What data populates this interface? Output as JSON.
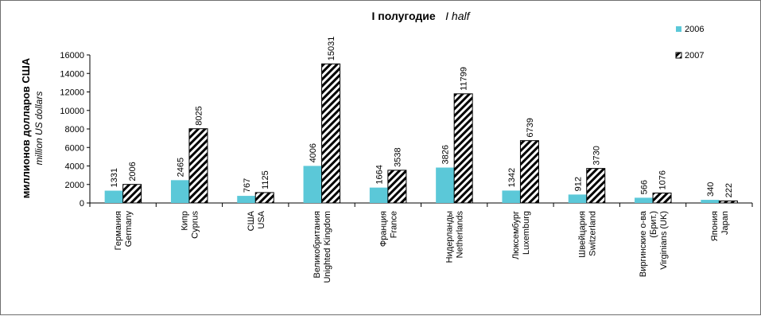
{
  "chart_data": {
    "type": "bar",
    "title": "I полугодие",
    "title_en": "I half",
    "ylabel": "миллионов долларов США",
    "ylabel_en": "million US dollars",
    "ylim": [
      0,
      16000
    ],
    "yticks": [
      "0",
      "2000",
      "4000",
      "6000",
      "8000",
      "10000",
      "12000",
      "14000",
      "16000"
    ],
    "grid": false,
    "legend_position": "top-right",
    "categories": [
      [
        "Германия",
        "Germany"
      ],
      [
        "Кипр",
        "Cyprus"
      ],
      [
        "США",
        "USA"
      ],
      [
        "Великобритания",
        "Unighted Kingdom"
      ],
      [
        "Франция",
        "France"
      ],
      [
        "Нидерланды",
        "Netherlands"
      ],
      [
        "Люксембург",
        "Luxemburg"
      ],
      [
        "Швейцария",
        "Switzerland"
      ],
      [
        "Виргинские о-ва",
        "(Брит.)",
        "Virginians (UK)"
      ],
      [
        "Япония",
        "Japan"
      ]
    ],
    "series": [
      {
        "name": "2006",
        "color": "#5bc8d8",
        "pattern": "solid",
        "values": [
          1331,
          2465,
          767,
          4006,
          1664,
          3826,
          1342,
          912,
          566,
          340
        ]
      },
      {
        "name": "2007",
        "color": "#000000",
        "pattern": "diagonal-stripes",
        "values": [
          2006,
          8025,
          1125,
          15031,
          3538,
          11799,
          6739,
          3730,
          1076,
          222
        ]
      }
    ]
  }
}
